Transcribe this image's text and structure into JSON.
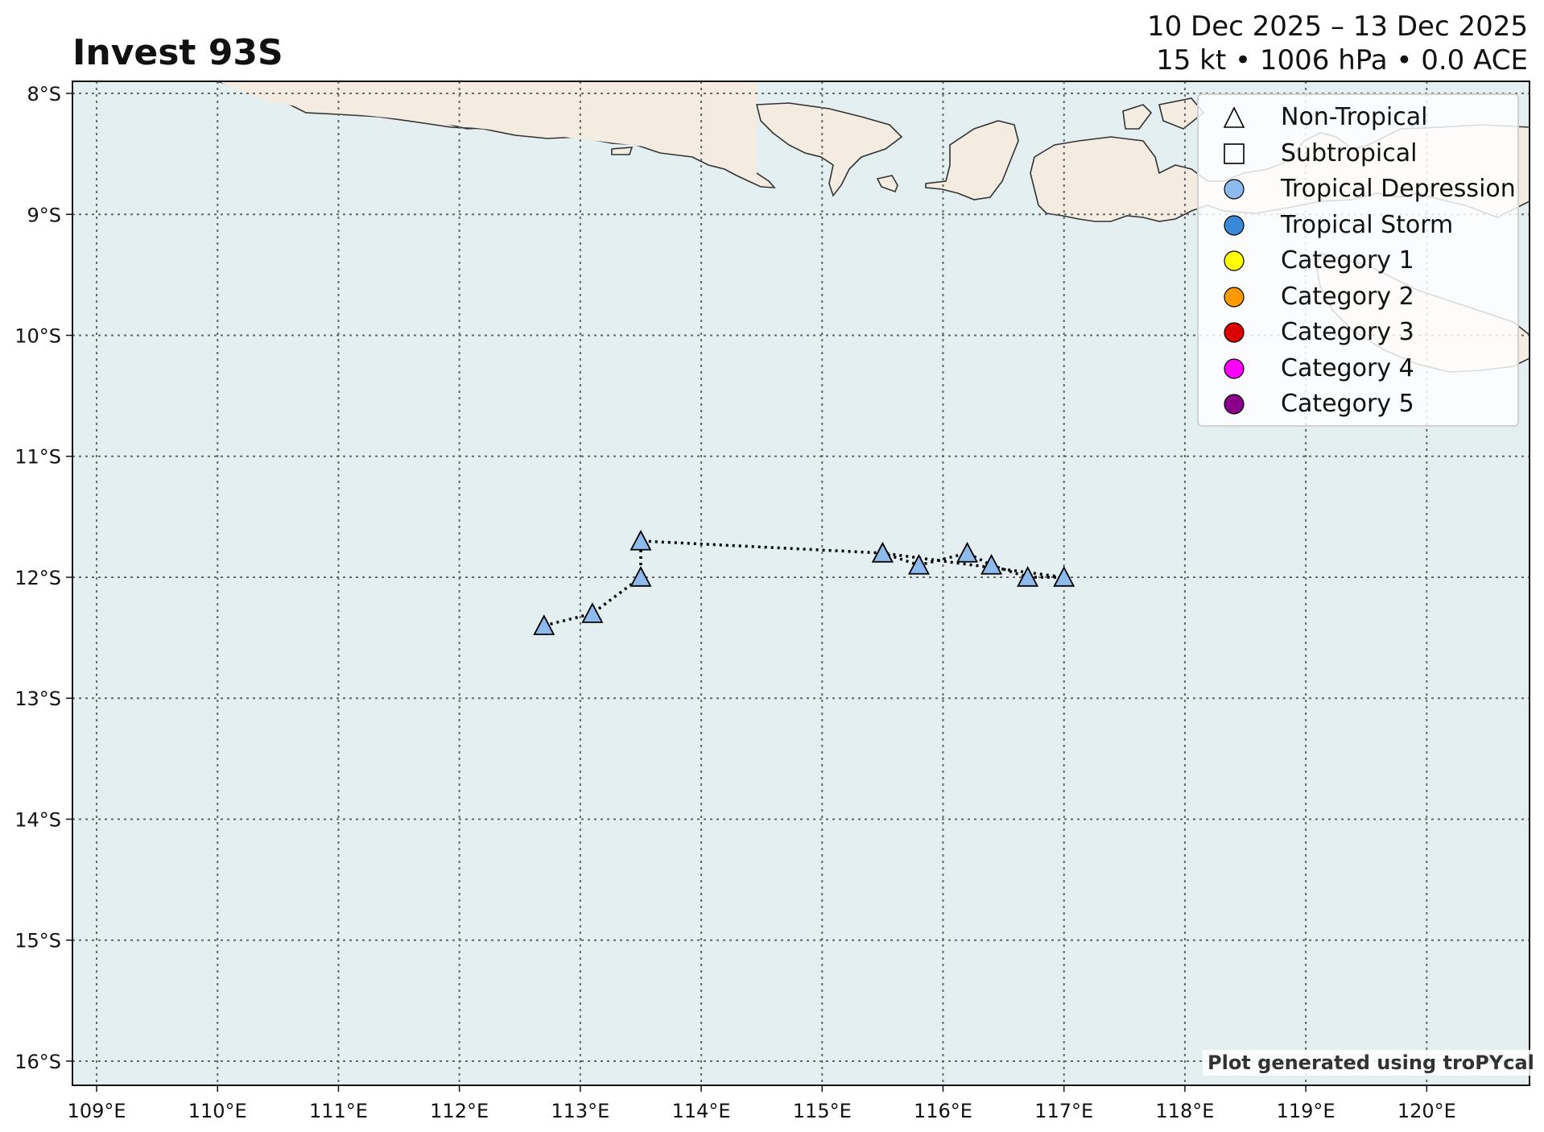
{
  "header": {
    "title": "Invest 93S",
    "date_range": "10 Dec 2025 – 13 Dec 2025",
    "stats": "15 kt • 1006 hPa • 0.0 ACE"
  },
  "colors": {
    "ocean": "#e4eff1",
    "land": "#f4ece0",
    "coast": "#333333",
    "grid": "#666666",
    "track": "#000000",
    "tropical_depression": "#8ebbee",
    "tropical_storm": "#3a88d8",
    "category_1": "#ffff00",
    "category_2": "#ff9900",
    "category_3": "#dd0000",
    "category_4": "#ff00ff",
    "category_5": "#8b008b"
  },
  "legend": [
    {
      "label": "Non-Tropical",
      "icon": "triangle-outline-icon",
      "shape": "triangle",
      "fill": "none"
    },
    {
      "label": "Subtropical",
      "icon": "square-outline-icon",
      "shape": "square",
      "fill": "none"
    },
    {
      "label": "Tropical Depression",
      "icon": "circle-icon",
      "shape": "circle",
      "fill": "#8ebbee"
    },
    {
      "label": "Tropical Storm",
      "icon": "circle-icon",
      "shape": "circle",
      "fill": "#3a88d8"
    },
    {
      "label": "Category 1",
      "icon": "circle-icon",
      "shape": "circle",
      "fill": "#ffff00"
    },
    {
      "label": "Category 2",
      "icon": "circle-icon",
      "shape": "circle",
      "fill": "#ff9900"
    },
    {
      "label": "Category 3",
      "icon": "circle-icon",
      "shape": "circle",
      "fill": "#dd0000"
    },
    {
      "label": "Category 4",
      "icon": "circle-icon",
      "shape": "circle",
      "fill": "#ff00ff"
    },
    {
      "label": "Category 5",
      "icon": "circle-icon",
      "shape": "circle",
      "fill": "#8b008b"
    }
  ],
  "credit": "Plot generated using troPYcal",
  "chart_data": {
    "type": "scatter",
    "title": "Invest 93S",
    "lon_range": [
      108.8,
      120.85
    ],
    "lat_range": [
      -16.2,
      -7.9
    ],
    "grid": true,
    "legend_position": "top-right",
    "x_ticks": [
      "109°E",
      "110°E",
      "111°E",
      "112°E",
      "113°E",
      "114°E",
      "115°E",
      "116°E",
      "117°E",
      "118°E",
      "119°E",
      "120°E"
    ],
    "x_tick_values": [
      109,
      110,
      111,
      112,
      113,
      114,
      115,
      116,
      117,
      118,
      119,
      120
    ],
    "y_ticks": [
      "8°S",
      "9°S",
      "10°S",
      "11°S",
      "12°S",
      "13°S",
      "14°S",
      "15°S",
      "16°S"
    ],
    "y_tick_values": [
      -8,
      -9,
      -10,
      -11,
      -12,
      -13,
      -14,
      -15,
      -16
    ],
    "track": [
      {
        "lon": 112.7,
        "lat": -12.4
      },
      {
        "lon": 113.1,
        "lat": -12.3
      },
      {
        "lon": 113.5,
        "lat": -12.0
      },
      {
        "lon": 113.5,
        "lat": -11.7
      },
      {
        "lon": 115.5,
        "lat": -11.8
      },
      {
        "lon": 117.0,
        "lat": -12.0
      },
      {
        "lon": 116.7,
        "lat": -12.0
      },
      {
        "lon": 116.4,
        "lat": -11.9
      },
      {
        "lon": 116.2,
        "lat": -11.8
      },
      {
        "lon": 115.8,
        "lat": -11.9
      },
      {
        "lon": 115.5,
        "lat": -11.8
      }
    ],
    "track_type": "Non-Tropical",
    "marker_fill": "#8ebbee"
  }
}
